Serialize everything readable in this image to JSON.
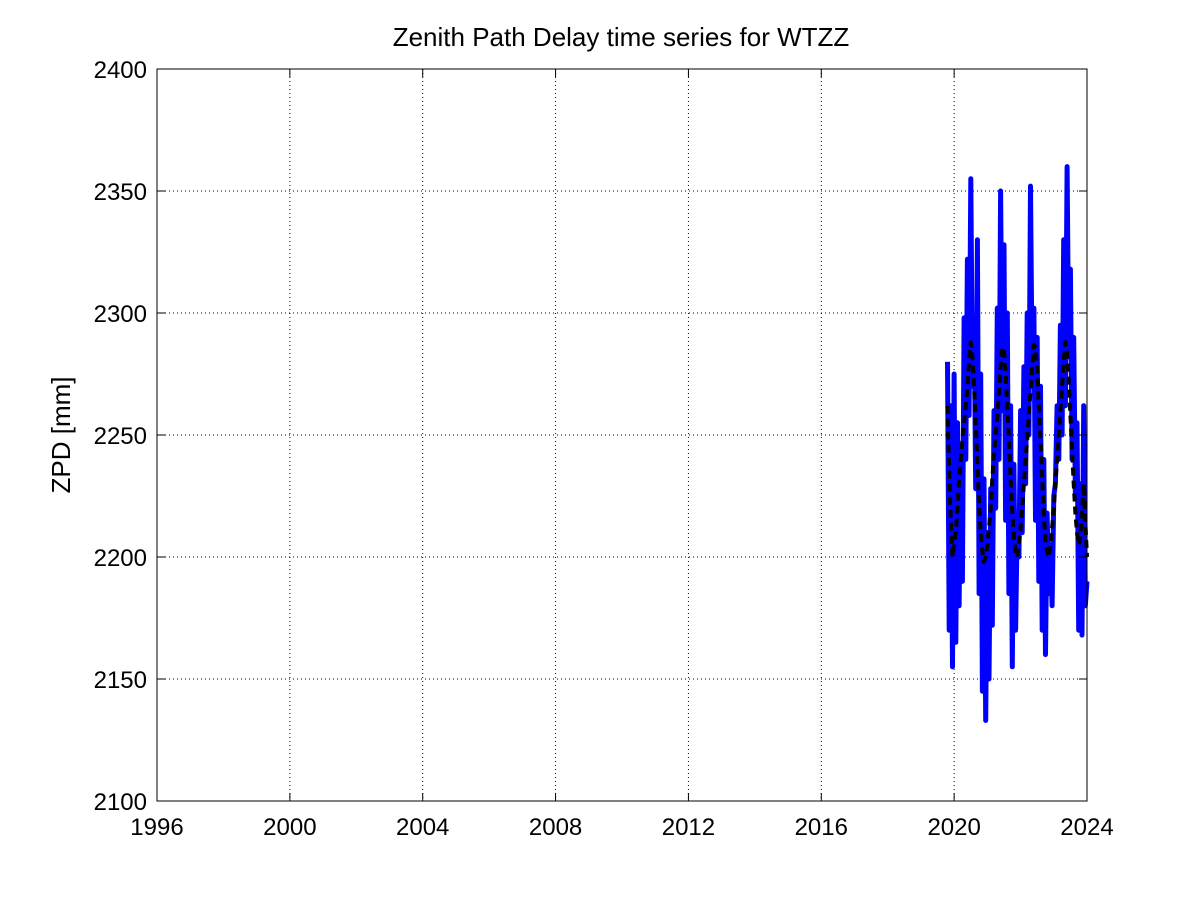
{
  "chart_data": {
    "type": "line",
    "title": "Zenith Path Delay time series for WTZZ",
    "xlabel": "",
    "ylabel": "ZPD [mm]",
    "xlim": [
      1996,
      2024
    ],
    "ylim": [
      2100,
      2400
    ],
    "xticks": [
      1996,
      2000,
      2004,
      2008,
      2012,
      2016,
      2020,
      2024
    ],
    "yticks": [
      2100,
      2150,
      2200,
      2250,
      2300,
      2350,
      2400
    ],
    "grid": true,
    "legend": "none",
    "series": [
      {
        "style": "solid",
        "color": "#0000ff",
        "x": [
          2019.8,
          2019.85,
          2019.9,
          2019.95,
          2020.0,
          2020.05,
          2020.1,
          2020.15,
          2020.2,
          2020.25,
          2020.3,
          2020.35,
          2020.4,
          2020.45,
          2020.5,
          2020.55,
          2020.6,
          2020.65,
          2020.7,
          2020.75,
          2020.8,
          2020.85,
          2020.9,
          2020.95,
          2021.0,
          2021.05,
          2021.1,
          2021.15,
          2021.2,
          2021.25,
          2021.3,
          2021.35,
          2021.4,
          2021.45,
          2021.5,
          2021.55,
          2021.6,
          2021.65,
          2021.7,
          2021.75,
          2021.8,
          2021.85,
          2021.9,
          2021.95,
          2022.0,
          2022.05,
          2022.1,
          2022.15,
          2022.2,
          2022.25,
          2022.3,
          2022.35,
          2022.4,
          2022.45,
          2022.5,
          2022.55,
          2022.6,
          2022.65,
          2022.7,
          2022.75,
          2022.8,
          2022.85,
          2022.9,
          2022.95,
          2023.0,
          2023.05,
          2023.1,
          2023.15,
          2023.2,
          2023.25,
          2023.3,
          2023.35,
          2023.4,
          2023.45,
          2023.5,
          2023.55,
          2023.6,
          2023.65,
          2023.7,
          2023.75,
          2023.8,
          2023.85,
          2023.9,
          2023.95,
          2024.0
        ],
        "y": [
          2280,
          2170,
          2262,
          2155,
          2275,
          2165,
          2255,
          2180,
          2245,
          2190,
          2298,
          2240,
          2322,
          2258,
          2355,
          2270,
          2298,
          2228,
          2330,
          2185,
          2275,
          2145,
          2232,
          2133,
          2210,
          2150,
          2228,
          2172,
          2260,
          2220,
          2302,
          2240,
          2350,
          2260,
          2328,
          2215,
          2300,
          2185,
          2262,
          2155,
          2238,
          2170,
          2215,
          2200,
          2260,
          2210,
          2278,
          2230,
          2300,
          2250,
          2352,
          2270,
          2302,
          2215,
          2290,
          2190,
          2270,
          2170,
          2240,
          2160,
          2218,
          2185,
          2205,
          2180,
          2225,
          2230,
          2262,
          2240,
          2295,
          2250,
          2330,
          2262,
          2360,
          2282,
          2318,
          2240,
          2290,
          2225,
          2255,
          2170,
          2230,
          2168,
          2262,
          2180,
          2190
        ]
      },
      {
        "style": "dashed",
        "color": "#000000",
        "x": [
          2019.8,
          2019.85,
          2019.9,
          2019.95,
          2020.0,
          2020.05,
          2020.1,
          2020.15,
          2020.2,
          2020.25,
          2020.3,
          2020.35,
          2020.4,
          2020.45,
          2020.5,
          2020.55,
          2020.6,
          2020.65,
          2020.7,
          2020.75,
          2020.8,
          2020.85,
          2020.9,
          2020.95,
          2021.0,
          2021.05,
          2021.1,
          2021.15,
          2021.2,
          2021.25,
          2021.3,
          2021.35,
          2021.4,
          2021.45,
          2021.5,
          2021.55,
          2021.6,
          2021.65,
          2021.7,
          2021.75,
          2021.8,
          2021.85,
          2021.9,
          2021.95,
          2022.0,
          2022.05,
          2022.1,
          2022.15,
          2022.2,
          2022.25,
          2022.3,
          2022.35,
          2022.4,
          2022.45,
          2022.5,
          2022.55,
          2022.6,
          2022.65,
          2022.7,
          2022.75,
          2022.8,
          2022.85,
          2022.9,
          2022.95,
          2023.0,
          2023.05,
          2023.1,
          2023.15,
          2023.2,
          2023.25,
          2023.3,
          2023.35,
          2023.4,
          2023.45,
          2023.5,
          2023.55,
          2023.6,
          2023.65,
          2023.7,
          2023.75,
          2023.8,
          2023.85,
          2023.9,
          2023.95,
          2024.0
        ],
        "y": [
          2262,
          2235,
          2215,
          2200,
          2205,
          2210,
          2220,
          2232,
          2240,
          2248,
          2255,
          2262,
          2270,
          2280,
          2288,
          2282,
          2270,
          2255,
          2238,
          2222,
          2210,
          2202,
          2198,
          2200,
          2205,
          2212,
          2220,
          2232,
          2242,
          2250,
          2258,
          2268,
          2278,
          2286,
          2285,
          2275,
          2262,
          2248,
          2232,
          2218,
          2208,
          2202,
          2200,
          2205,
          2212,
          2220,
          2230,
          2240,
          2248,
          2258,
          2268,
          2278,
          2287,
          2286,
          2276,
          2262,
          2248,
          2232,
          2218,
          2206,
          2202,
          2200,
          2205,
          2212,
          2220,
          2230,
          2240,
          2250,
          2260,
          2270,
          2280,
          2288,
          2284,
          2272,
          2258,
          2244,
          2230,
          2218,
          2210,
          2205,
          2208,
          2218,
          2230,
          2215,
          2200
        ]
      }
    ]
  }
}
